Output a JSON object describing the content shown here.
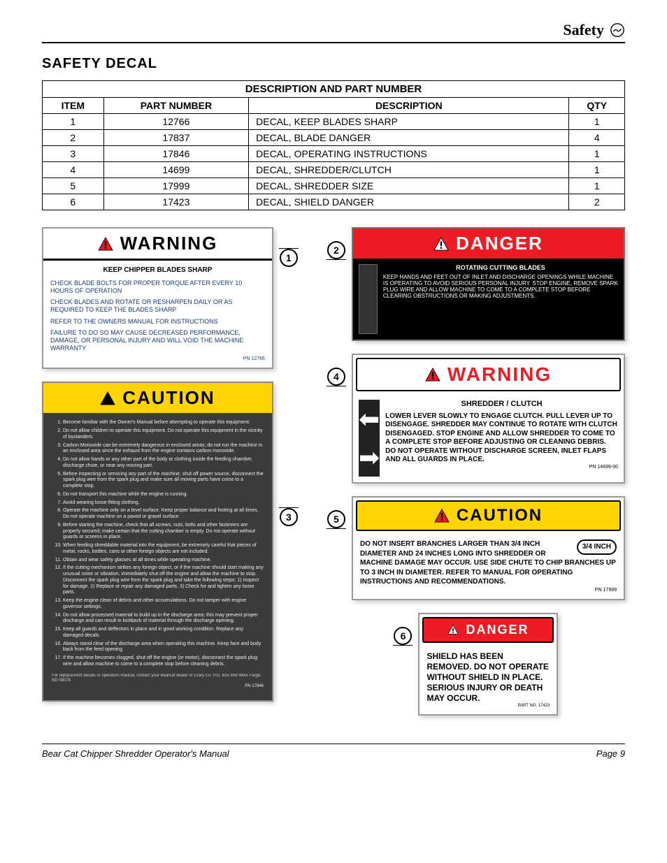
{
  "header": {
    "title": "Safety"
  },
  "section_title": "SAFETY DECAL",
  "table": {
    "caption": "DESCRIPTION AND PART NUMBER",
    "columns": [
      "ITEM",
      "PART NUMBER",
      "DESCRIPTION",
      "QTY"
    ],
    "rows": [
      [
        "1",
        "12766",
        "DECAL, KEEP BLADES SHARP",
        "1"
      ],
      [
        "2",
        "17837",
        "DECAL, BLADE DANGER",
        "4"
      ],
      [
        "3",
        "17846",
        "DECAL, OPERATING INSTRUCTIONS",
        "1"
      ],
      [
        "4",
        "14699",
        "DECAL, SHREDDER/CLUTCH",
        "1"
      ],
      [
        "5",
        "17999",
        "DECAL, SHREDDER SIZE",
        "1"
      ],
      [
        "6",
        "17423",
        "DECAL, SHIELD DANGER",
        "2"
      ]
    ]
  },
  "callouts": {
    "c1": "1",
    "c2": "2",
    "c3": "3",
    "c4": "4",
    "c5": "5",
    "c6": "6"
  },
  "decal1": {
    "title": "WARNING",
    "subhead": "KEEP CHIPPER BLADES SHARP",
    "p1": "CHECK BLADE BOLTS FOR PROPER TORQUE AFTER EVERY 10 HOURS OF OPERATION",
    "p2": "CHECK BLADES AND ROTATE OR RESHARPEN DAILY OR AS REQUIRED TO KEEP THE BLADES SHARP",
    "p3": "REFER TO THE OWNERS MANUAL FOR INSTRUCTIONS",
    "p4": "FAILURE TO DO SO MAY CAUSE DECREASED PERFORMANCE, DAMAGE, OR PERSONAL INJURY AND WILL VOID THE MACHINE WARRANTY",
    "pn": "PN 12766"
  },
  "decal2": {
    "title": "DANGER",
    "subhead": "ROTATING CUTTING BLADES",
    "body": "KEEP HANDS AND FEET OUT OF INLET AND DISCHARGE OPENINGS WHILE MACHINE IS OPERATING TO AVOID SERIOUS PERSONAL INJURY. STOP ENGINE, REMOVE SPARK PLUG WIRE AND ALLOW MACHINE TO COME TO A COMPLETE STOP BEFORE CLEARING OBSTRUCTIONS OR MAKING ADJUSTMENTS."
  },
  "decal3": {
    "title": "CAUTION",
    "items": [
      "Become familiar with the Owner's Manual before attempting to operate this equipment.",
      "Do not allow children to operate this equipment. Do not operate this equipment in the vicinity of bystanders.",
      "Carbon Monoxide can be extremely dangerous in enclosed areas; do not run the machine in an enclosed area since the exhaust from the engine contains carbon monoxide.",
      "Do not allow hands or any other part of the body or clothing inside the feeding chamber, discharge chute, or near any moving part.",
      "Before inspecting or servicing any part of the machine, shut off power source, disconnect the spark plug wire from the spark plug and make sure all moving parts have come to a complete stop.",
      "Do not transport this machine while the engine is running.",
      "Avoid wearing loose-fitting clothing.",
      "Operate the machine only on a level surface. Keep proper balance and footing at all times. Do not operate machine on a paved or gravel surface.",
      "Before starting the machine, check that all screws, nuts, bolts and other fasteners are properly secured; make certain that the cutting chamber is empty. Do not operate without guards or screens in place.",
      "When feeding shreddable material into the equipment, be extremely careful that pieces of metal, rocks, bottles, cans or other foreign objects are not included.",
      "Obtain and wear safety glasses at all times while operating machine.",
      "If the cutting mechanism strikes any foreign object, or if the machine should start making any unusual noise or vibration, immediately shut off the engine and allow the machine to stop. Disconnect the spark plug wire from the spark plug and take the following steps: 1) Inspect for damage. 2) Replace or repair any damaged parts. 3) Check for and tighten any loose parts.",
      "Keep the engine clean of debris and other accumulations. Do not tamper with engine governor settings.",
      "Do not allow processed material to build up in the discharge area; this may prevent proper discharge and can result in kickback of material through the discharge opening.",
      "Keep all guards and deflectors in place and in good working condition. Replace any damaged decals.",
      "Always stand clear of the discharge area when operating this machine. Keep face and body back from the feed opening.",
      "If the machine becomes clogged, shut off the engine (or motor), disconnect the spark plug wire and allow machine to come to a complete stop before cleaning debris."
    ],
    "foot": "For replacement decals or operators manual, contact your Bearcat dealer or Crary Co.  P.O. Box 849  West Fargo, ND  58078",
    "pn": "PN 17846"
  },
  "decal4": {
    "title": "WARNING",
    "subhead": "SHREDDER / CLUTCH",
    "body": "LOWER LEVER SLOWLY TO ENGAGE CLUTCH. PULL LEVER UP TO DISENGAGE. SHREDDER MAY CONTINUE TO ROTATE WITH CLUTCH DISENGAGED. STOP ENGINE AND ALLOW SHREDDER TO COME TO A COMPLETE STOP BEFORE ADJUSTING OR CLEANING DEBRIS. DO NOT OPERATE WITHOUT DISCHARGE SCREEN, INLET FLAPS AND ALL GUARDS IN PLACE.",
    "pn": "PN 14699-00"
  },
  "decal5": {
    "title": "CAUTION",
    "inch": "3/4 INCH",
    "body": "DO NOT INSERT BRANCHES LARGER THAN 3/4 INCH DIAMETER AND 24 INCHES LONG INTO SHREDDER OR MACHINE DAMAGE MAY OCCUR. USE SIDE CHUTE TO CHIP BRANCHES UP TO 3 INCH IN DIAMETER. REFER TO MANUAL FOR OPERATING INSTRUCTIONS AND RECOMMENDATIONS.",
    "pn": "PN 17999"
  },
  "decal6": {
    "title": "DANGER",
    "body": "SHIELD HAS BEEN REMOVED. DO NOT OPERATE WITHOUT SHIELD IN PLACE. SERIOUS INJURY OR DEATH MAY OCCUR.",
    "pn": "PART NO. 17423"
  },
  "footer": {
    "left": "Bear Cat Chipper Shredder Operator's Manual",
    "right": "Page 9"
  },
  "colors": {
    "red": "#ed1c24",
    "yellow": "#ffd400",
    "dark": "#3b3b3b",
    "blueText": "#1a3a6e"
  }
}
